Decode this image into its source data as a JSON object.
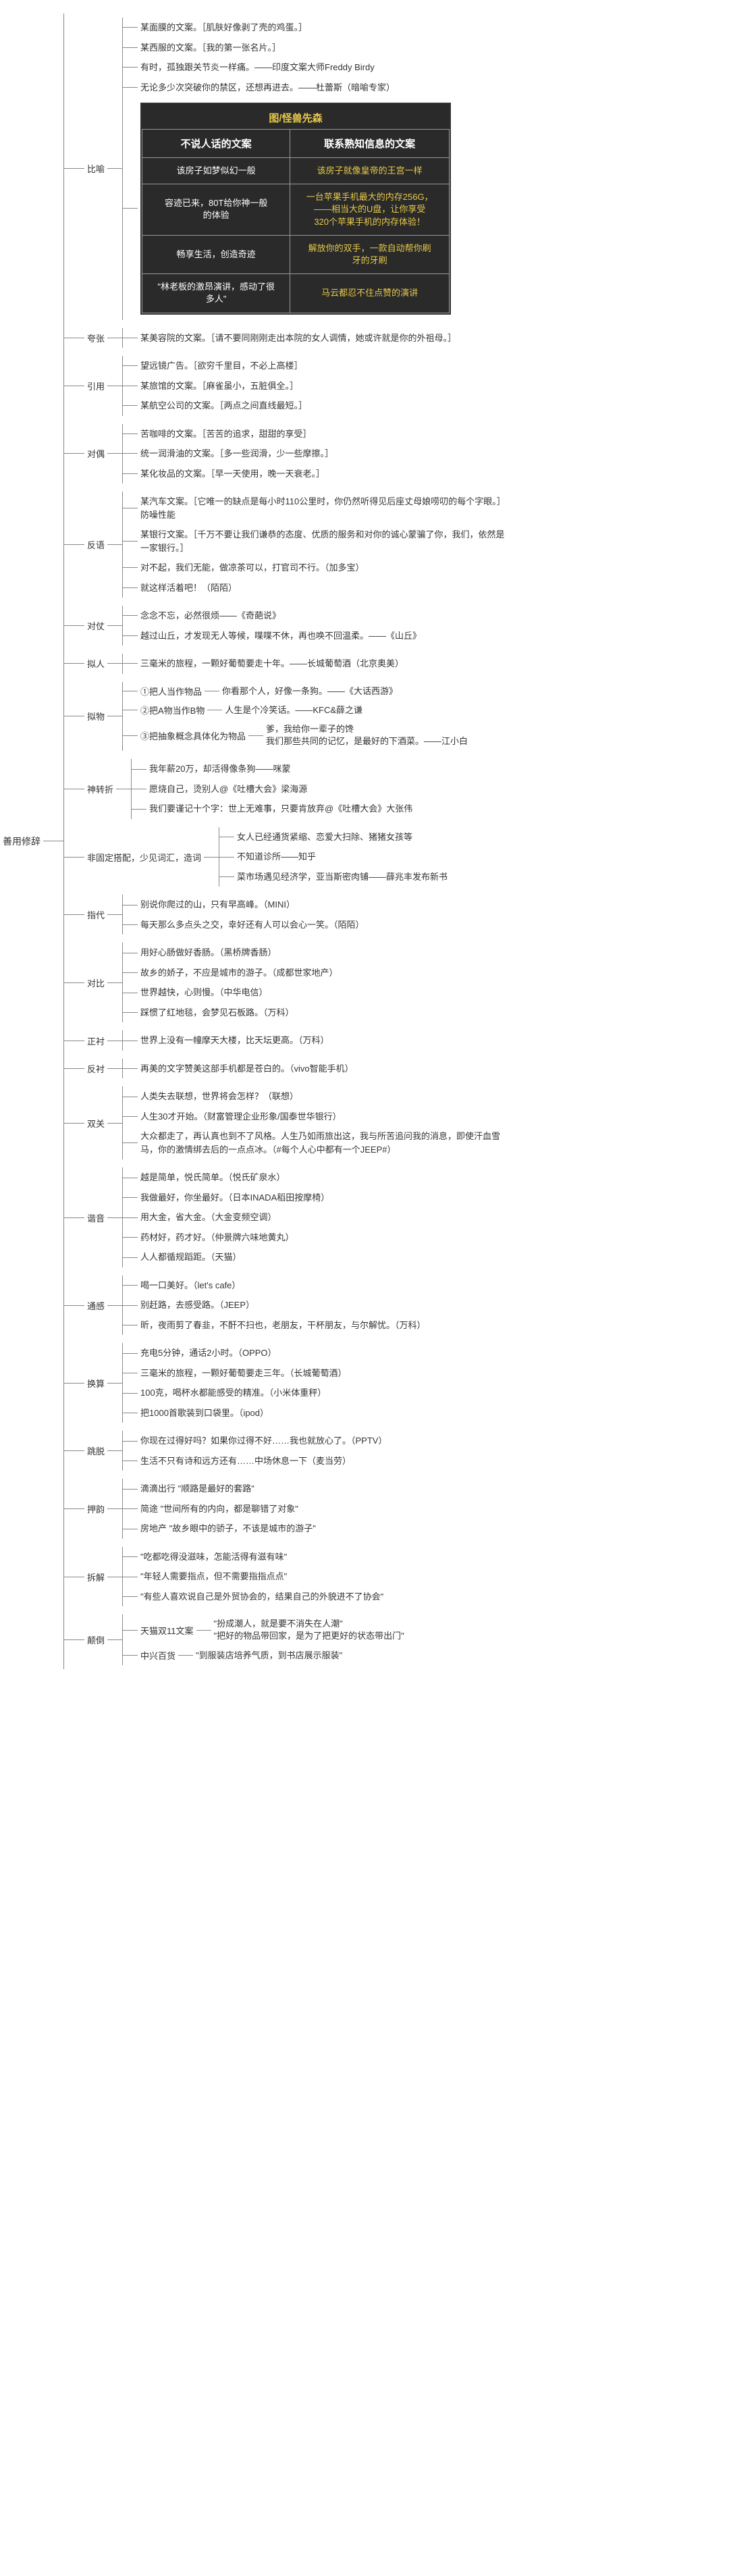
{
  "theme": {
    "line_color": "#888888",
    "text_color": "#333333",
    "bg_color": "#ffffff",
    "font_family": "Microsoft YaHei",
    "base_fontsize": 13,
    "slide_bg": "#2a2a2a",
    "slide_title_color": "#e6c94a",
    "slide_th_fontsize": 15,
    "slide_left_text_color": "#ffffff",
    "slide_right_text_color": "#e6c94a"
  },
  "root": "善用修辞",
  "slide": {
    "title": "图/怪兽先森",
    "header_left": "不说人话的文案",
    "header_right": "联系熟知信息的文案",
    "rows": [
      [
        "该房子如梦似幻一般",
        "该房子就像皇帝的王宫一样"
      ],
      [
        "容迹已来，80T给你神一般\n的体验",
        "一台苹果手机最大的内存256G，\n——相当大的U盘，让你享受\n320个苹果手机的内存体验！"
      ],
      [
        "畅享生活，创造奇迹",
        "解放你的双手，一款自动帮你刷\n牙的牙刷"
      ],
      [
        "\"林老板的激昂演讲，感动了很\n多人\"",
        "马云都忍不住点赞的演讲"
      ]
    ]
  },
  "categories": [
    {
      "name": "比喻",
      "leaves": [
        "某面膜的文案。［肌肤好像剥了壳的鸡蛋。］",
        "某西服的文案。［我的第一张名片。］",
        "有时，孤独跟关节炎一样痛。——印度文案大师Freddy Birdy",
        "无论多少次突破你的禁区，还想再进去。——杜蕾斯（暗喻专家）"
      ],
      "has_slide": true
    },
    {
      "name": "夸张",
      "leaves": [
        "某美容院的文案。［请不要同刚刚走出本院的女人调情，她或许就是你的外祖母。］"
      ]
    },
    {
      "name": "引用",
      "leaves": [
        "望远镜广告。［欲穷千里目，不必上高楼］",
        "某旅馆的文案。［麻雀虽小，五脏俱全。］",
        "某航空公司的文案。［两点之间直线最短。］"
      ]
    },
    {
      "name": "对偶",
      "leaves": [
        "苦咖啡的文案。［苦苦的追求，甜甜的享受］",
        "统一润滑油的文案。［多一些润滑，少一些摩擦。］",
        "某化妆品的文案。［早一天使用，晚一天衰老。］"
      ]
    },
    {
      "name": "反语",
      "leaves": [
        "某汽车文案。［它唯一的缺点是每小时110公里时，你仍然听得见后座丈母娘唠叨的每个字眼。］防噪性能",
        "某银行文案。［千万不要让我们谦恭的态度、优质的服务和对你的诚心蒙骗了你，我们，依然是一家银行。］",
        "对不起，我们无能，做凉茶可以，打官司不行。（加多宝）",
        "就这样活着吧！（陌陌）"
      ]
    },
    {
      "name": "对仗",
      "leaves": [
        "念念不忘，必然很烦——《奇葩说》",
        "越过山丘，才发现无人等候，喋喋不休，再也唤不回温柔。——《山丘》"
      ]
    },
    {
      "name": "拟人",
      "leaves": [
        "三毫米的旅程，一颗好葡萄要走十年。——长城葡萄酒（北京奥美）"
      ]
    },
    {
      "name": "拟物",
      "subs": [
        {
          "label": "①把人当作物品",
          "text": "你看那个人，好像一条狗。——《大话西游》"
        },
        {
          "label": "②把A物当作B物",
          "text": "人生是个冷笑话。——KFC&薛之谦"
        },
        {
          "label": "③把抽象概念具体化为物品",
          "text": "爹，我给你一辈子的馋\n我们那些共同的记忆，是最好的下酒菜。——江小白"
        }
      ]
    },
    {
      "name": "神转折",
      "leaves": [
        "我年薪20万，却活得像条狗——咪蒙",
        "愿烧自己，烫别人@《吐槽大会》梁海源",
        "我们要谨记十个字：世上无难事，只要肯放弃@《吐槽大会》大张伟"
      ]
    },
    {
      "name": "非固定搭配，少见词汇，造词",
      "leaves": [
        "女人已经通货紧缩、恋爱大扫除、猪猪女孩等",
        "不知道诊所——知乎",
        "菜市场遇见经济学，亚当斯密肉铺——薛兆丰发布新书"
      ]
    },
    {
      "name": "指代",
      "leaves": [
        "别说你爬过的山，只有早高峰。（MINI）",
        "每天那么多点头之交，幸好还有人可以会心一笑。（陌陌）"
      ]
    },
    {
      "name": "对比",
      "leaves": [
        "用好心肠做好香肠。（黑桥牌香肠）",
        "故乡的娇子，不应是城市的游子。（成都世家地产）",
        "世界越快，心则慢。（中华电信）",
        "踩惯了红地毯，会梦见石板路。（万科）"
      ]
    },
    {
      "name": "正衬",
      "leaves": [
        "世界上没有一幢摩天大楼，比天坛更高。（万科）"
      ]
    },
    {
      "name": "反衬",
      "leaves": [
        "再美的文字赞美这部手机都是苍白的。（vivo智能手机）"
      ]
    },
    {
      "name": "双关",
      "leaves": [
        "人类失去联想，世界将会怎样？（联想）",
        "人生30才开始。（财富管理企业形象/国泰世华银行）",
        "大众都走了，再认真也到不了风格。人生乃如雨旅出这，我与所苦追问我的消息，即使汗血雪马，你的激情绑去后的一点点冰。（#每个人心中都有一个JEEP#）"
      ]
    },
    {
      "name": "谐音",
      "leaves": [
        "越是简单，悦氏简单。（悦氏矿泉水）",
        "我做最好，你坐最好。（日本INADA稻田按摩椅）",
        "用大金，省大金。（大金变频空调）",
        "药材好，药才好。（仲景牌六味地黄丸）",
        "人人都循规蹈距。（天猫）"
      ]
    },
    {
      "name": "通感",
      "leaves": [
        "喝一口美好。（let's cafe）",
        "别赶路，去感受路。（JEEP）",
        "昕，夜雨剪了春韭，不酐不扫也，老朋友，干杯朋友，与尔解忧。（万科）"
      ]
    },
    {
      "name": "换算",
      "leaves": [
        "充电5分钟，通话2小时。（OPPO）",
        "三毫米的旅程，一颗好葡萄要走三年。（长城葡萄酒）",
        "100克，喝杯水都能感受的精准。（小米体重秤）",
        "把1000首歌装到口袋里。（ipod）"
      ]
    },
    {
      "name": "跳脱",
      "leaves": [
        "你现在过得好吗？如果你过得不好……我也就放心了。（PPTV）",
        "生活不只有诗和远方还有……中场休息一下（麦当劳）"
      ]
    },
    {
      "name": "押韵",
      "leaves": [
        "滴滴出行 \"顺路是最好的套路\"",
        "简途 \"世间所有的内向，都是聊错了对象\"",
        "房地产 \"故乡眼中的骄子，不该是城市的游子\""
      ]
    },
    {
      "name": "拆解",
      "leaves": [
        "\"吃都吃得没滋味，怎能活得有滋有味\"",
        "\"年轻人需要指点，但不需要指指点点\"",
        "\"有些人喜欢说自己是外贸协会的，结果自己的外貌进不了协会\""
      ]
    },
    {
      "name": "颠倒",
      "subs": [
        {
          "label": "天猫双11文案",
          "text": "\"扮成潮人，就是要不消失在人潮\"\n\"把好的物品带回家，是为了把更好的状态带出门\""
        },
        {
          "label": "中兴百货",
          "text": "\"到服装店培养气质，到书店展示服装\""
        }
      ]
    }
  ]
}
